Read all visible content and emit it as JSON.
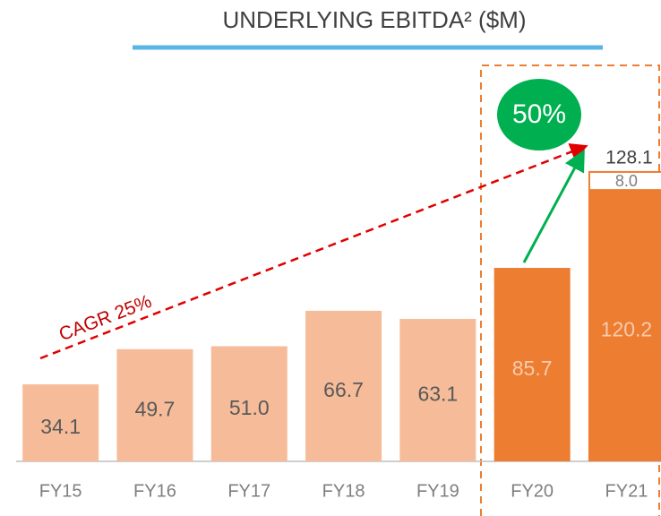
{
  "chart_data": {
    "type": "stacked_bar",
    "title": "UNDERLYING EBITDA² ($M)",
    "categories": [
      "FY15",
      "FY16",
      "FY17",
      "FY18",
      "FY19",
      "FY20",
      "FY21"
    ],
    "values": [
      34.1,
      49.7,
      51.0,
      66.7,
      63.1,
      85.7,
      120.2
    ],
    "value_labels": [
      "34.1",
      "49.7",
      "51.0",
      "66.7",
      "63.1",
      "85.7",
      "120.2"
    ],
    "colors": [
      "#f6bc99",
      "#f6bc99",
      "#f6bc99",
      "#f6bc99",
      "#f6bc99",
      "#ec7d31",
      "#ec7d31"
    ],
    "stack_values": [
      null,
      null,
      null,
      null,
      null,
      null,
      8.0
    ],
    "stack_value_labels": [
      null,
      null,
      null,
      null,
      null,
      null,
      "8.0"
    ],
    "totals": [
      null,
      null,
      null,
      null,
      null,
      null,
      128.1
    ],
    "ylim": [
      0,
      150
    ],
    "annotations": [
      "CAGR 25%",
      "50%"
    ]
  }
}
